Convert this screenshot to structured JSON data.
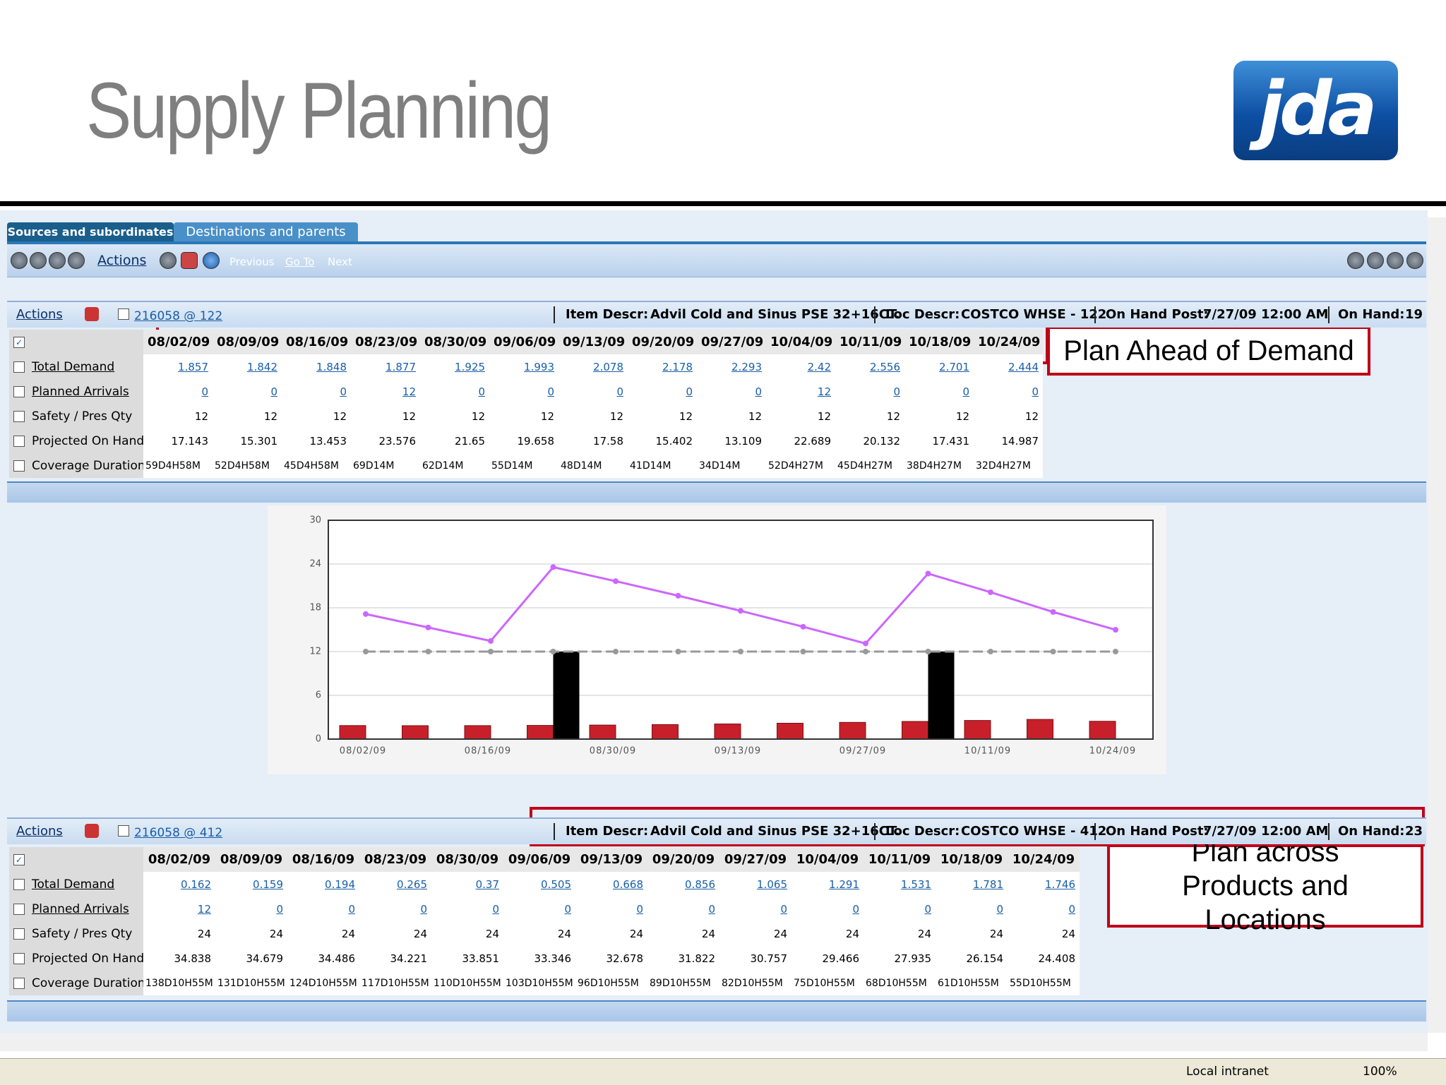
{
  "header": {
    "title": "Supply Planning",
    "logo": "jda"
  },
  "tabs": [
    "Sources and subordinates",
    "Destinations and parents"
  ],
  "toolbar": {
    "actions": "Actions",
    "previous": "Previous",
    "goto": "Go To",
    "next": "Next"
  },
  "panels": [
    {
      "actions": "Actions",
      "item": "216058 @ 122",
      "item_descr_label": "Item Descr:",
      "item_descr": "Advil Cold and Sinus PSE 32+16CT.",
      "loc_descr_label": "Loc Descr:",
      "loc_descr": "COSTCO WHSE - 122",
      "on_hand_post_label": "On Hand Post:",
      "on_hand_post": "7/27/09 12:00 AM",
      "on_hand_label": "On Hand:",
      "on_hand": "19",
      "dates": [
        "08/02/09",
        "08/09/09",
        "08/16/09",
        "08/23/09",
        "08/30/09",
        "09/06/09",
        "09/13/09",
        "09/20/09",
        "09/27/09",
        "10/04/09",
        "10/11/09",
        "10/18/09",
        "10/24/09"
      ],
      "rows": [
        {
          "label": "Total Demand",
          "link": true,
          "values": [
            1.857,
            1.842,
            1.848,
            1.877,
            1.925,
            1.993,
            2.078,
            2.178,
            2.293,
            2.42,
            2.556,
            2.701,
            2.444
          ]
        },
        {
          "label": "Planned Arrivals",
          "link": true,
          "values": [
            0,
            0,
            0,
            12,
            0,
            0,
            0,
            0,
            0,
            12,
            0,
            0,
            0
          ]
        },
        {
          "label": "Safety / Pres Qty",
          "link": false,
          "values": [
            12,
            12,
            12,
            12,
            12,
            12,
            12,
            12,
            12,
            12,
            12,
            12,
            12
          ]
        },
        {
          "label": "Projected On Hand",
          "link": false,
          "values": [
            17.143,
            15.301,
            13.453,
            23.576,
            21.65,
            19.658,
            17.58,
            15.402,
            13.109,
            22.689,
            20.132,
            17.431,
            14.987
          ]
        },
        {
          "label": "Coverage Duration",
          "link": false,
          "values": [
            "59D4H58M",
            "52D4H58M",
            "45D4H58M",
            "69D14M",
            "62D14M",
            "55D14M",
            "48D14M",
            "41D14M",
            "34D14M",
            "52D4H27M",
            "45D4H27M",
            "38D4H27M",
            "32D4H27M"
          ]
        }
      ]
    },
    {
      "actions": "Actions",
      "item": "216058 @ 412",
      "item_descr_label": "Item Descr:",
      "item_descr": "Advil Cold and Sinus PSE 32+16CT.",
      "loc_descr_label": "Loc Descr:",
      "loc_descr": "COSTCO WHSE - 412",
      "on_hand_post_label": "On Hand Post:",
      "on_hand_post": "7/27/09 12:00 AM",
      "on_hand_label": "On Hand:",
      "on_hand": "23",
      "dates": [
        "08/02/09",
        "08/09/09",
        "08/16/09",
        "08/23/09",
        "08/30/09",
        "09/06/09",
        "09/13/09",
        "09/20/09",
        "09/27/09",
        "10/04/09",
        "10/11/09",
        "10/18/09",
        "10/24/09"
      ],
      "rows": [
        {
          "label": "Total Demand",
          "link": true,
          "values": [
            0.162,
            0.159,
            0.194,
            0.265,
            0.37,
            0.505,
            0.668,
            0.856,
            1.065,
            1.291,
            1.531,
            1.781,
            1.746
          ]
        },
        {
          "label": "Planned Arrivals",
          "link": true,
          "values": [
            12,
            0,
            0,
            0,
            0,
            0,
            0,
            0,
            0,
            0,
            0,
            0,
            0
          ]
        },
        {
          "label": "Safety / Pres Qty",
          "link": false,
          "values": [
            24,
            24,
            24,
            24,
            24,
            24,
            24,
            24,
            24,
            24,
            24,
            24,
            24
          ]
        },
        {
          "label": "Projected On Hand",
          "link": false,
          "values": [
            34.838,
            34.679,
            34.486,
            34.221,
            33.851,
            33.346,
            32.678,
            31.822,
            30.757,
            29.466,
            27.935,
            26.154,
            24.408
          ]
        },
        {
          "label": "Coverage Duration",
          "link": false,
          "values": [
            "138D10H55M",
            "131D10H55M",
            "124D10H55M",
            "117D10H55M",
            "110D10H55M",
            "103D10H55M",
            "96D10H55M",
            "89D10H55M",
            "82D10H55M",
            "75D10H55M",
            "68D10H55M",
            "61D10H55M",
            "55D10H55M"
          ]
        }
      ]
    }
  ],
  "chart": {
    "ylim": [
      0,
      30
    ],
    "yticks": [
      0,
      6,
      12,
      18,
      24,
      30
    ],
    "grid": true
  },
  "callouts": [
    "Plan Ahead of Demand",
    "Plan across Products and Locations"
  ],
  "status": {
    "zone": "Local intranet",
    "zoom": "100%"
  }
}
